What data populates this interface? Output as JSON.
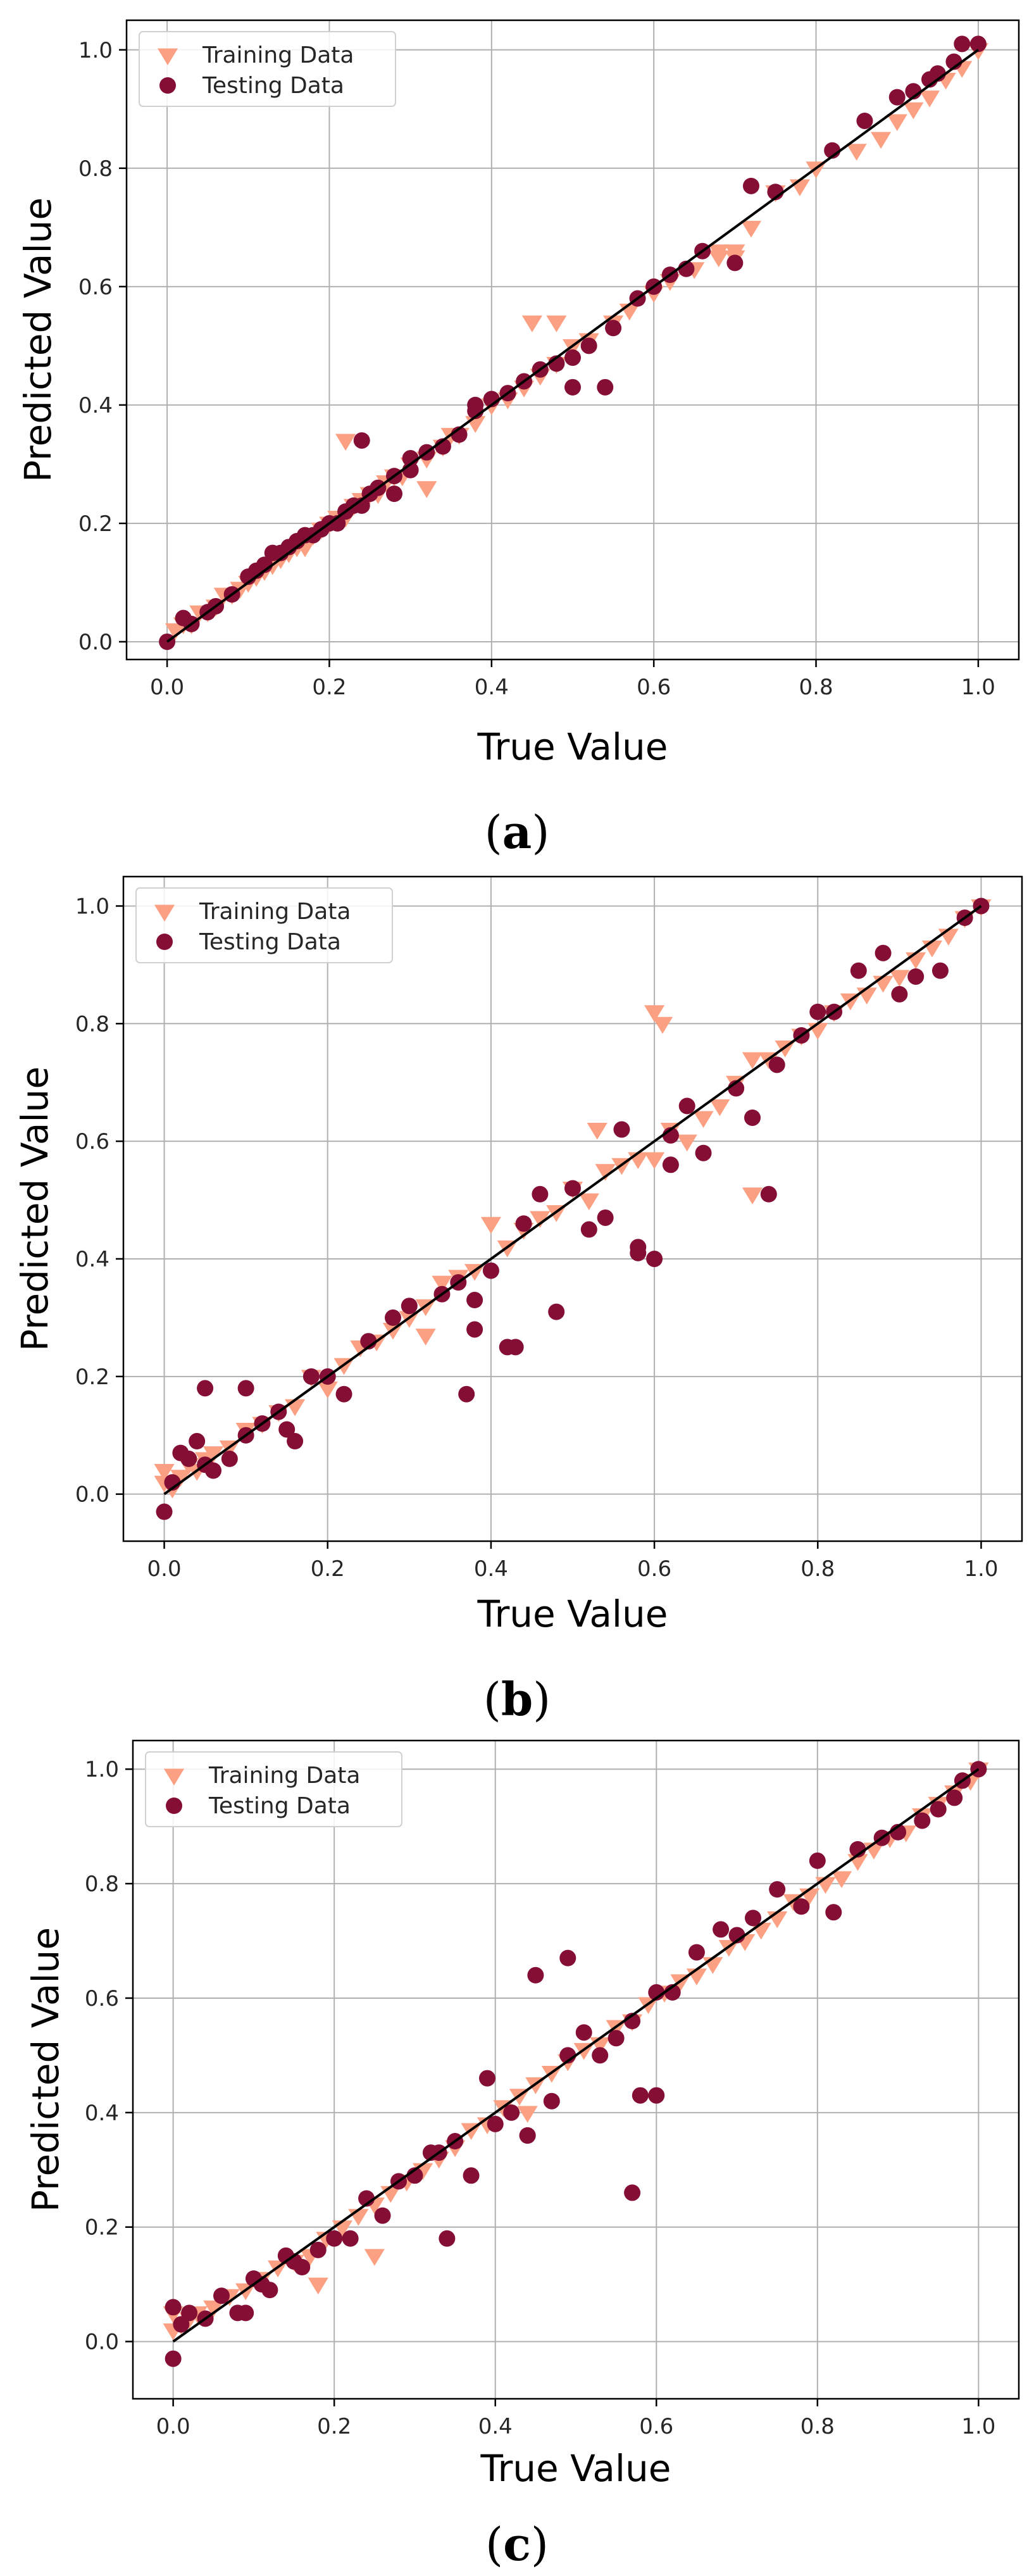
{
  "colors": {
    "training": "#fca083",
    "testing": "#850e35",
    "fit_line": "#000000",
    "grid": "#b0b0b0"
  },
  "chart_data": [
    {
      "type": "scatter",
      "panel": "a",
      "caption_label": "a",
      "xlabel": "True Value",
      "ylabel": "Predicted Value",
      "xlim": [
        -0.05,
        1.05
      ],
      "ylim": [
        -0.03,
        1.05
      ],
      "xticks": [
        0.0,
        0.2,
        0.4,
        0.6,
        0.8,
        1.0
      ],
      "xtick_labels": [
        "0.0",
        "0.2",
        "0.4",
        "0.6",
        "0.8",
        "1.0"
      ],
      "yticks": [
        0.0,
        0.2,
        0.4,
        0.6,
        0.8,
        1.0
      ],
      "ytick_labels": [
        "0.0",
        "0.2",
        "0.4",
        "0.6",
        "0.8",
        "1.0"
      ],
      "grid": true,
      "legend_position": "top-left",
      "legend": [
        "Training Data",
        "Testing Data"
      ],
      "reference_line": {
        "from": [
          0,
          0
        ],
        "to": [
          1,
          1
        ]
      },
      "series": [
        {
          "name": "Training Data",
          "marker": "triangle-down",
          "x": [
            0.01,
            0.02,
            0.03,
            0.04,
            0.05,
            0.06,
            0.07,
            0.08,
            0.09,
            0.1,
            0.11,
            0.12,
            0.13,
            0.14,
            0.15,
            0.16,
            0.17,
            0.18,
            0.19,
            0.2,
            0.21,
            0.22,
            0.23,
            0.24,
            0.25,
            0.26,
            0.27,
            0.28,
            0.29,
            0.3,
            0.32,
            0.34,
            0.35,
            0.36,
            0.38,
            0.4,
            0.42,
            0.44,
            0.46,
            0.48,
            0.5,
            0.52,
            0.55,
            0.57,
            0.6,
            0.62,
            0.65,
            0.68,
            0.7,
            0.72,
            0.75,
            0.78,
            0.8,
            0.85,
            0.88,
            0.9,
            0.92,
            0.94,
            0.96,
            0.98,
            1.0,
            0.45,
            0.48,
            0.68,
            0.7,
            0.22,
            0.32
          ],
          "y": [
            0.02,
            0.03,
            0.03,
            0.05,
            0.05,
            0.06,
            0.08,
            0.08,
            0.09,
            0.1,
            0.11,
            0.12,
            0.13,
            0.14,
            0.15,
            0.16,
            0.16,
            0.18,
            0.19,
            0.2,
            0.21,
            0.21,
            0.23,
            0.24,
            0.25,
            0.25,
            0.27,
            0.28,
            0.28,
            0.3,
            0.31,
            0.33,
            0.35,
            0.35,
            0.37,
            0.4,
            0.41,
            0.43,
            0.45,
            0.47,
            0.5,
            0.51,
            0.54,
            0.56,
            0.59,
            0.61,
            0.63,
            0.66,
            0.66,
            0.7,
            0.76,
            0.77,
            0.8,
            0.83,
            0.85,
            0.88,
            0.9,
            0.92,
            0.95,
            0.97,
            1.0,
            0.54,
            0.54,
            0.65,
            0.65,
            0.34,
            0.26
          ]
        },
        {
          "name": "Testing Data",
          "marker": "circle",
          "x": [
            0.0,
            0.02,
            0.03,
            0.05,
            0.06,
            0.08,
            0.1,
            0.11,
            0.12,
            0.13,
            0.14,
            0.15,
            0.16,
            0.17,
            0.18,
            0.19,
            0.2,
            0.21,
            0.22,
            0.23,
            0.24,
            0.25,
            0.26,
            0.28,
            0.3,
            0.32,
            0.34,
            0.36,
            0.38,
            0.4,
            0.42,
            0.44,
            0.46,
            0.48,
            0.5,
            0.52,
            0.55,
            0.58,
            0.6,
            0.62,
            0.64,
            0.66,
            0.7,
            0.72,
            0.75,
            0.82,
            0.86,
            0.9,
            0.92,
            0.94,
            0.95,
            0.97,
            0.98,
            1.0,
            0.24,
            0.28,
            0.3,
            0.38,
            0.5,
            0.54
          ],
          "y": [
            0.0,
            0.04,
            0.03,
            0.05,
            0.06,
            0.08,
            0.11,
            0.12,
            0.13,
            0.15,
            0.15,
            0.16,
            0.17,
            0.18,
            0.18,
            0.19,
            0.2,
            0.2,
            0.22,
            0.23,
            0.23,
            0.25,
            0.26,
            0.28,
            0.29,
            0.32,
            0.33,
            0.35,
            0.39,
            0.41,
            0.42,
            0.44,
            0.46,
            0.47,
            0.48,
            0.5,
            0.53,
            0.58,
            0.6,
            0.62,
            0.63,
            0.66,
            0.64,
            0.77,
            0.76,
            0.83,
            0.88,
            0.92,
            0.93,
            0.95,
            0.96,
            0.98,
            1.01,
            1.01,
            0.34,
            0.25,
            0.31,
            0.4,
            0.43,
            0.43
          ]
        }
      ]
    },
    {
      "type": "scatter",
      "panel": "b",
      "caption_label": "b",
      "xlabel": "True Value",
      "ylabel": "Predicted Value",
      "xlim": [
        -0.05,
        1.05
      ],
      "ylim": [
        -0.08,
        1.05
      ],
      "xticks": [
        0.0,
        0.2,
        0.4,
        0.6,
        0.8,
        1.0
      ],
      "xtick_labels": [
        "0.0",
        "0.2",
        "0.4",
        "0.6",
        "0.8",
        "1.0"
      ],
      "yticks": [
        0.0,
        0.2,
        0.4,
        0.6,
        0.8,
        1.0
      ],
      "ytick_labels": [
        "0.0",
        "0.2",
        "0.4",
        "0.6",
        "0.8",
        "1.0"
      ],
      "grid": true,
      "legend_position": "top-left",
      "legend": [
        "Training Data",
        "Testing Data"
      ],
      "reference_line": {
        "from": [
          0,
          0
        ],
        "to": [
          1,
          1
        ]
      },
      "series": [
        {
          "name": "Training Data",
          "marker": "triangle-down",
          "x": [
            0.0,
            0.0,
            0.01,
            0.02,
            0.03,
            0.04,
            0.05,
            0.06,
            0.08,
            0.1,
            0.12,
            0.14,
            0.16,
            0.18,
            0.2,
            0.22,
            0.24,
            0.26,
            0.28,
            0.3,
            0.32,
            0.32,
            0.34,
            0.36,
            0.38,
            0.4,
            0.42,
            0.44,
            0.46,
            0.48,
            0.5,
            0.52,
            0.54,
            0.56,
            0.58,
            0.6,
            0.61,
            0.62,
            0.64,
            0.66,
            0.68,
            0.7,
            0.72,
            0.74,
            0.76,
            0.78,
            0.8,
            0.82,
            0.84,
            0.86,
            0.88,
            0.9,
            0.92,
            0.94,
            0.96,
            0.98,
            1.0,
            0.72,
            0.6,
            0.53,
            0.46
          ],
          "y": [
            0.02,
            0.04,
            0.01,
            0.03,
            0.05,
            0.04,
            0.06,
            0.07,
            0.08,
            0.11,
            0.12,
            0.14,
            0.15,
            0.2,
            0.18,
            0.22,
            0.25,
            0.26,
            0.28,
            0.3,
            0.27,
            0.32,
            0.36,
            0.37,
            0.38,
            0.46,
            0.42,
            0.45,
            0.47,
            0.48,
            0.52,
            0.5,
            0.55,
            0.56,
            0.57,
            0.82,
            0.8,
            0.62,
            0.6,
            0.64,
            0.66,
            0.7,
            0.74,
            0.74,
            0.76,
            0.78,
            0.79,
            0.82,
            0.84,
            0.85,
            0.87,
            0.88,
            0.91,
            0.93,
            0.95,
            0.98,
            1.0,
            0.51,
            0.57,
            0.62,
            0.47
          ]
        },
        {
          "name": "Testing Data",
          "marker": "circle",
          "x": [
            0.0,
            0.01,
            0.02,
            0.03,
            0.04,
            0.05,
            0.06,
            0.08,
            0.1,
            0.12,
            0.14,
            0.15,
            0.16,
            0.18,
            0.2,
            0.22,
            0.25,
            0.28,
            0.3,
            0.34,
            0.36,
            0.37,
            0.38,
            0.4,
            0.42,
            0.44,
            0.46,
            0.48,
            0.5,
            0.52,
            0.54,
            0.56,
            0.58,
            0.6,
            0.62,
            0.64,
            0.66,
            0.7,
            0.72,
            0.75,
            0.78,
            0.8,
            0.82,
            0.85,
            0.88,
            0.9,
            0.92,
            0.95,
            0.98,
            1.0,
            0.05,
            0.1,
            0.38,
            0.43,
            0.58,
            0.74,
            0.62
          ],
          "y": [
            -0.03,
            0.02,
            0.07,
            0.06,
            0.09,
            0.05,
            0.04,
            0.06,
            0.18,
            0.12,
            0.14,
            0.11,
            0.09,
            0.2,
            0.2,
            0.17,
            0.26,
            0.3,
            0.32,
            0.34,
            0.36,
            0.17,
            0.33,
            0.38,
            0.25,
            0.46,
            0.51,
            0.31,
            0.52,
            0.45,
            0.47,
            0.62,
            0.42,
            0.4,
            0.61,
            0.66,
            0.58,
            0.69,
            0.64,
            0.73,
            0.78,
            0.82,
            0.82,
            0.89,
            0.92,
            0.85,
            0.88,
            0.89,
            0.98,
            1.0,
            0.18,
            0.1,
            0.28,
            0.25,
            0.41,
            0.51,
            0.56
          ]
        }
      ]
    },
    {
      "type": "scatter",
      "panel": "c",
      "caption_label": "c",
      "xlabel": "True Value",
      "ylabel": "Predicted Value",
      "xlim": [
        -0.05,
        1.05
      ],
      "ylim": [
        -0.1,
        1.05
      ],
      "xticks": [
        0.0,
        0.2,
        0.4,
        0.6,
        0.8,
        1.0
      ],
      "xtick_labels": [
        "0.0",
        "0.2",
        "0.4",
        "0.6",
        "0.8",
        "1.0"
      ],
      "yticks": [
        0.0,
        0.2,
        0.4,
        0.6,
        0.8,
        1.0
      ],
      "ytick_labels": [
        "0.0",
        "0.2",
        "0.4",
        "0.6",
        "0.8",
        "1.0"
      ],
      "grid": true,
      "legend_position": "top-left",
      "legend": [
        "Training Data",
        "Testing Data"
      ],
      "reference_line": {
        "from": [
          0,
          0
        ],
        "to": [
          1,
          1
        ]
      },
      "series": [
        {
          "name": "Training Data",
          "marker": "triangle-down",
          "x": [
            0.0,
            0.0,
            0.01,
            0.02,
            0.03,
            0.05,
            0.07,
            0.09,
            0.11,
            0.13,
            0.15,
            0.17,
            0.19,
            0.21,
            0.23,
            0.25,
            0.27,
            0.29,
            0.31,
            0.33,
            0.35,
            0.37,
            0.39,
            0.41,
            0.43,
            0.45,
            0.47,
            0.49,
            0.51,
            0.53,
            0.55,
            0.57,
            0.59,
            0.61,
            0.63,
            0.65,
            0.67,
            0.69,
            0.71,
            0.73,
            0.75,
            0.77,
            0.79,
            0.81,
            0.83,
            0.85,
            0.87,
            0.89,
            0.91,
            0.93,
            0.95,
            0.97,
            0.99,
            1.0,
            0.18,
            0.25,
            0.44
          ],
          "y": [
            0.05,
            0.02,
            0.03,
            0.04,
            0.05,
            0.06,
            0.08,
            0.09,
            0.11,
            0.13,
            0.14,
            0.15,
            0.18,
            0.2,
            0.22,
            0.24,
            0.26,
            0.28,
            0.3,
            0.32,
            0.34,
            0.37,
            0.38,
            0.41,
            0.43,
            0.45,
            0.47,
            0.49,
            0.51,
            0.52,
            0.55,
            0.56,
            0.59,
            0.61,
            0.63,
            0.64,
            0.66,
            0.69,
            0.7,
            0.72,
            0.74,
            0.77,
            0.78,
            0.8,
            0.81,
            0.84,
            0.86,
            0.88,
            0.89,
            0.92,
            0.94,
            0.96,
            0.98,
            1.0,
            0.1,
            0.15,
            0.4
          ]
        },
        {
          "name": "Testing Data",
          "marker": "circle",
          "x": [
            0.0,
            0.0,
            0.01,
            0.02,
            0.04,
            0.06,
            0.08,
            0.1,
            0.11,
            0.12,
            0.14,
            0.15,
            0.16,
            0.18,
            0.2,
            0.22,
            0.24,
            0.26,
            0.28,
            0.3,
            0.32,
            0.33,
            0.35,
            0.37,
            0.39,
            0.4,
            0.42,
            0.44,
            0.45,
            0.47,
            0.49,
            0.51,
            0.53,
            0.55,
            0.57,
            0.58,
            0.6,
            0.62,
            0.65,
            0.68,
            0.7,
            0.72,
            0.75,
            0.78,
            0.8,
            0.82,
            0.85,
            0.88,
            0.9,
            0.93,
            0.95,
            0.97,
            0.98,
            1.0,
            0.34,
            0.44,
            0.49,
            0.57,
            0.6,
            0.09
          ],
          "y": [
            -0.03,
            0.06,
            0.03,
            0.05,
            0.04,
            0.08,
            0.05,
            0.11,
            0.1,
            0.09,
            0.15,
            0.14,
            0.13,
            0.16,
            0.18,
            0.18,
            0.25,
            0.22,
            0.28,
            0.29,
            0.33,
            0.33,
            0.35,
            0.29,
            0.46,
            0.38,
            0.4,
            0.36,
            0.64,
            0.42,
            0.5,
            0.54,
            0.5,
            0.53,
            0.56,
            0.43,
            0.61,
            0.61,
            0.68,
            0.72,
            0.71,
            0.74,
            0.79,
            0.76,
            0.84,
            0.75,
            0.86,
            0.88,
            0.89,
            0.91,
            0.93,
            0.95,
            0.98,
            1.0,
            0.18,
            0.36,
            0.67,
            0.26,
            0.43,
            0.05
          ]
        }
      ]
    }
  ]
}
